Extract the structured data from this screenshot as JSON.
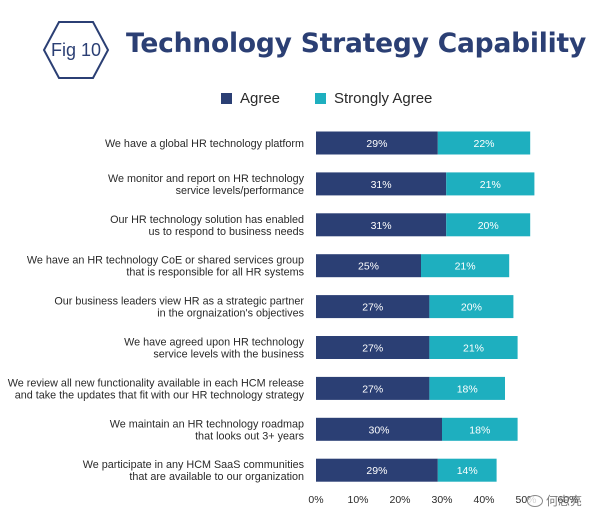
{
  "badge": {
    "label": "Fig 10"
  },
  "title": "Technology Strategy Capability",
  "colors": {
    "agree": "#2b3f74",
    "strongly_agree": "#1eafbf",
    "title": "#2b3f74"
  },
  "legend": [
    {
      "label": "Agree",
      "color": "#2b3f74"
    },
    {
      "label": "Strongly Agree",
      "color": "#1eafbf"
    }
  ],
  "watermark": {
    "text": "何志亮",
    "icon": "wechat-icon"
  },
  "chart_data": {
    "type": "bar",
    "orientation": "horizontal",
    "stacked": true,
    "categories": [
      [
        "We have a global HR technology platform"
      ],
      [
        "We monitor and report on HR technology",
        "service levels/performance"
      ],
      [
        "Our HR technology solution has enabled",
        "us to respond to business needs"
      ],
      [
        "We have an HR technology CoE or shared services group",
        "that is responsible for all HR systems"
      ],
      [
        "Our business leaders view HR as a strategic partner",
        "in the orgnaization's objectives"
      ],
      [
        "We have agreed upon HR technology",
        "service levels with the business"
      ],
      [
        "We review all new functionality available in each HCM release",
        "and take the updates that fit with our HR technology strategy"
      ],
      [
        "We maintain an HR technology roadmap",
        "that looks out 3+ years"
      ],
      [
        "We participate in any HCM SaaS communities",
        "that are available to our organization"
      ]
    ],
    "series": [
      {
        "name": "Agree",
        "values": [
          29,
          31,
          31,
          25,
          27,
          27,
          27,
          30,
          29
        ]
      },
      {
        "name": "Strongly Agree",
        "values": [
          22,
          21,
          20,
          21,
          20,
          21,
          18,
          18,
          14
        ]
      }
    ],
    "value_labels": [
      [
        "29%",
        "31%",
        "31%",
        "25%",
        "27%",
        "27%",
        "27%",
        "30%",
        "29%"
      ],
      [
        "22%",
        "21%",
        "20%",
        "21%",
        "20%",
        "21%",
        "18%",
        "18%",
        "14%"
      ]
    ],
    "x_ticks": [
      "0%",
      "10%",
      "20%",
      "30%",
      "40%",
      "50%",
      "60%"
    ],
    "xlim": [
      0,
      60
    ],
    "grid": false,
    "legend_position": "top"
  }
}
